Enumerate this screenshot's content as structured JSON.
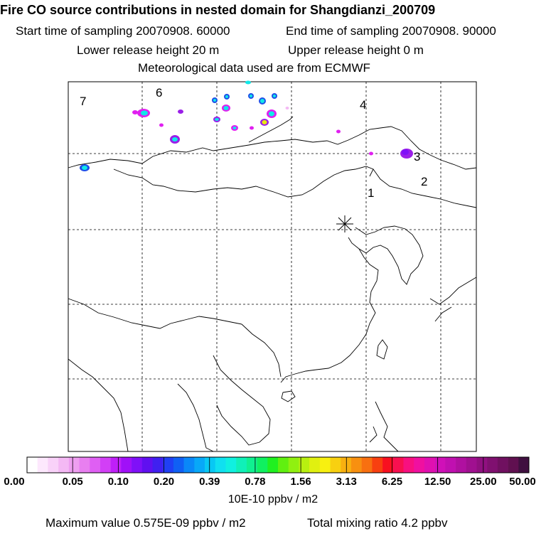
{
  "header": {
    "title": "Fire CO source contributions in nested domain for Shangdianzi_200709",
    "start_label": "Start time of sampling 20070908. 60000",
    "end_label": "End time of sampling 20070908. 90000",
    "lower_height": "Lower release height   20 m",
    "upper_height": "Upper release height    0 m",
    "met_data": "Meteorological data used are from ECMWF"
  },
  "map": {
    "region_labels": [
      "1",
      "2",
      "3",
      "4",
      "6",
      "7"
    ],
    "receptor": "Shangdianzi",
    "colors": {
      "coast": "#000000",
      "grid": "#000000",
      "plume_magenta": "#e020f0",
      "plume_purple": "#9b1fe8",
      "plume_cyan": "#11e8e8",
      "plume_blue": "#1f4fe8",
      "plume_yellow": "#e8e810"
    }
  },
  "colorbar": {
    "labels": [
      "0.00",
      "0.05",
      "0.10",
      "0.20",
      "0.39",
      "0.78",
      "1.56",
      "3.13",
      "6.25",
      "12.50",
      "25.00",
      "50.00"
    ],
    "colors": [
      "#ffffff",
      "#fde8fd",
      "#f9d2f9",
      "#f4b9f4",
      "#ee9ff0",
      "#e87ff0",
      "#df5ff3",
      "#d23ff6",
      "#bf1ff8",
      "#a010f8",
      "#7f10f8",
      "#6010f0",
      "#4020f0",
      "#2040f4",
      "#1060f4",
      "#0a88f8",
      "#08a8f8",
      "#08c8f4",
      "#10e0f0",
      "#10f0e0",
      "#10f0b8",
      "#10f090",
      "#10f060",
      "#20f020",
      "#60f010",
      "#90f010",
      "#b8f010",
      "#e0f010",
      "#f8f010",
      "#f8d010",
      "#f8b010",
      "#f89010",
      "#f87010",
      "#f84010",
      "#f81020",
      "#f81050",
      "#f81080",
      "#f010a0",
      "#e010b0",
      "#d010b8",
      "#c010b0",
      "#b010a0",
      "#a01090",
      "#901080",
      "#801070",
      "#701060",
      "#601050",
      "#401040"
    ],
    "units": "10E-10 ppbv / m2"
  },
  "footer": {
    "max_value": "Maximum value  0.575E-09 ppbv / m2",
    "total_mixing": "Total mixing ratio       4.2 ppbv"
  }
}
